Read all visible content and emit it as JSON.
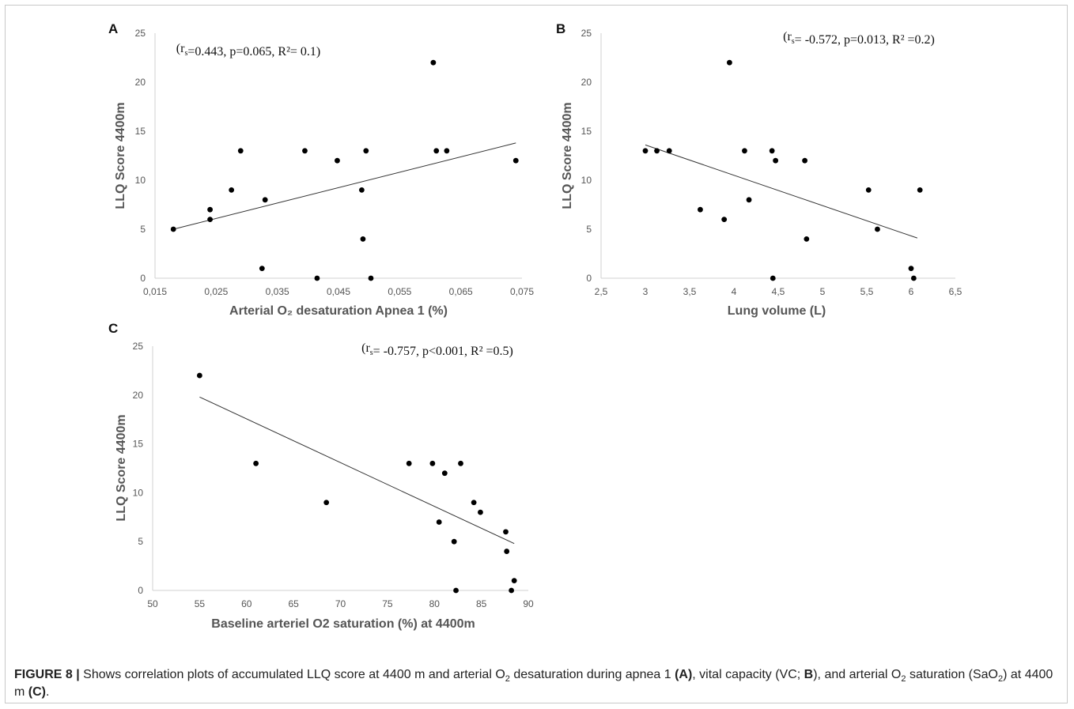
{
  "chart_data": [
    {
      "type": "scatter",
      "panel": "A",
      "annotation": "(r_s=0.443, p=0.065, R²= 0.1)",
      "xlabel": "Arterial O₂ desaturation Apnea 1 (%)",
      "ylabel": "LLQ Score 4400m",
      "xlim": [
        0.015,
        0.075
      ],
      "ylim": [
        0,
        25
      ],
      "xticks": [
        "0,015",
        "0,025",
        "0,035",
        "0,045",
        "0,055",
        "0,065",
        "0,075"
      ],
      "yticks": [
        "0",
        "5",
        "10",
        "15",
        "20",
        "25"
      ],
      "x": [
        0.018,
        0.024,
        0.024,
        0.0275,
        0.029,
        0.0325,
        0.033,
        0.0395,
        0.0415,
        0.0448,
        0.0488,
        0.049,
        0.0495,
        0.0503,
        0.0605,
        0.061,
        0.0627,
        0.074
      ],
      "y": [
        5,
        6,
        7,
        9,
        13,
        1,
        8,
        13,
        0,
        12,
        9,
        4,
        13,
        0,
        22,
        13,
        13,
        12
      ],
      "trendline": {
        "x": [
          0.018,
          0.074
        ],
        "y": [
          5.0,
          13.8
        ]
      },
      "grid": false
    },
    {
      "type": "scatter",
      "panel": "B",
      "annotation": "(r_s= -0.572, p=0.013, R² =0.2)",
      "xlabel": "Lung volume (L)",
      "ylabel": "LLQ Score 4400m",
      "xlim": [
        2.5,
        6.5
      ],
      "ylim": [
        0,
        25
      ],
      "xticks": [
        "2,5",
        "3",
        "3,5",
        "4",
        "4,5",
        "5",
        "5,5",
        "6",
        "6,5"
      ],
      "yticks": [
        "0",
        "5",
        "10",
        "15",
        "20",
        "25"
      ],
      "x": [
        3.0,
        3.13,
        3.27,
        3.62,
        3.89,
        3.95,
        4.12,
        4.17,
        4.43,
        4.44,
        4.47,
        4.8,
        4.82,
        5.52,
        5.62,
        6.0,
        6.03,
        6.1
      ],
      "y": [
        13,
        13,
        13,
        7,
        6,
        22,
        13,
        8,
        13,
        0,
        12,
        12,
        4,
        9,
        5,
        1,
        0,
        9
      ],
      "trendline": {
        "x": [
          3.0,
          6.07
        ],
        "y": [
          13.6,
          4.1
        ]
      },
      "grid": false
    },
    {
      "type": "scatter",
      "panel": "C",
      "annotation": "(r_s= -0.757, p<0.001, R² =0.5)",
      "xlabel": "Baseline arteriel O2 saturation (%) at 4400m",
      "ylabel": "LLQ  Score 4400m",
      "xlim": [
        50,
        90
      ],
      "ylim": [
        0,
        25
      ],
      "xticks": [
        "50",
        "55",
        "60",
        "65",
        "70",
        "75",
        "80",
        "85",
        "90"
      ],
      "yticks": [
        "0",
        "5",
        "10",
        "15",
        "20",
        "25"
      ],
      "x": [
        55,
        61,
        68.5,
        77.3,
        79.8,
        80.5,
        81.1,
        82.1,
        82.3,
        82.8,
        84.2,
        84.9,
        87.6,
        87.7,
        88.2,
        88.5
      ],
      "y": [
        22,
        13,
        9,
        13,
        13,
        7,
        12,
        5,
        0,
        13,
        9,
        8,
        6,
        4,
        0,
        1
      ],
      "trendline": {
        "x": [
          55,
          88.5
        ],
        "y": [
          19.8,
          4.8
        ]
      },
      "grid": false
    }
  ],
  "caption": {
    "label": "FIGURE 8 |",
    "t1": " Shows correlation plots of accumulated LLQ score at 4400 m and arterial O",
    "sub1": "2",
    "t2": " desaturation during apnea 1 ",
    "b1": "(A)",
    "t3": ", vital capacity (VC; ",
    "b2": "B",
    "t4": "), and arterial O",
    "sub2": "2",
    "t5": " saturation (SaO",
    "sub3": "2",
    "t6": ") at 4400 m ",
    "b3": "(C)",
    "t7": "."
  }
}
